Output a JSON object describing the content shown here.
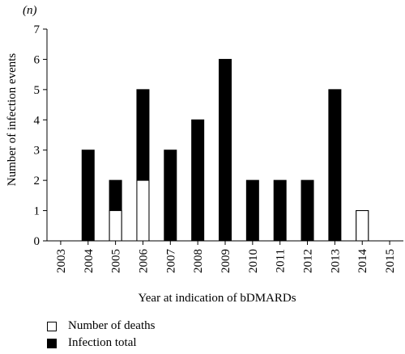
{
  "chart_data": {
    "type": "bar",
    "stacked": true,
    "unit_label": "(n)",
    "ylabel": "Number of infection events",
    "xlabel": "Year at indication of bDMARDs",
    "ylim": [
      0,
      7
    ],
    "yticks": [
      "0",
      "1",
      "2",
      "3",
      "4",
      "5",
      "6",
      "7"
    ],
    "categories": [
      "2003",
      "2004",
      "2005",
      "2006",
      "2007",
      "2008",
      "2009",
      "2010",
      "2011",
      "2012",
      "2013",
      "2014",
      "2015"
    ],
    "series": [
      {
        "name": "Number of deaths",
        "color": "#ffffff",
        "values": [
          0,
          0,
          1,
          2,
          0,
          0,
          0,
          0,
          0,
          0,
          0,
          1,
          0
        ]
      },
      {
        "name": "Infection total",
        "color": "#000000",
        "values": [
          0,
          3,
          2,
          5,
          3,
          4,
          6,
          2,
          2,
          2,
          5,
          1,
          0
        ]
      }
    ],
    "legend_position": "bottom-left",
    "grid": false
  }
}
